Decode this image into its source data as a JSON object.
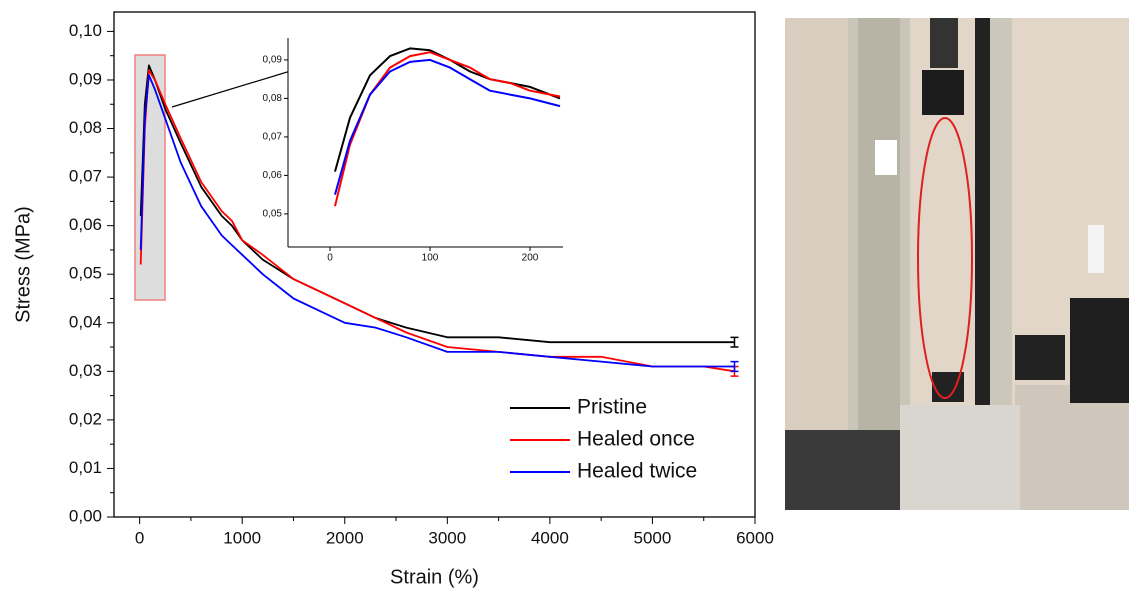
{
  "chart_data": [
    {
      "type": "line",
      "xlabel": "Strain (%)",
      "ylabel": "Stress (MPa)",
      "xlim": [
        -250,
        6000
      ],
      "ylim": [
        0,
        0.104
      ],
      "xticks": [
        0,
        1000,
        2000,
        3000,
        4000,
        5000,
        6000
      ],
      "yticks": [
        {
          "value": 0,
          "label": "0,00"
        },
        {
          "value": 0.01,
          "label": "0,01"
        },
        {
          "value": 0.02,
          "label": "0,02"
        },
        {
          "value": 0.03,
          "label": "0,03"
        },
        {
          "value": 0.04,
          "label": "0,04"
        },
        {
          "value": 0.05,
          "label": "0,05"
        },
        {
          "value": 0.06,
          "label": "0,06"
        },
        {
          "value": 0.07,
          "label": "0,07"
        },
        {
          "value": 0.08,
          "label": "0,08"
        },
        {
          "value": 0.09,
          "label": "0,09"
        },
        {
          "value": 0.1,
          "label": "0,10"
        }
      ],
      "legend": "lower right",
      "x": [
        10,
        50,
        90,
        150,
        250,
        400,
        600,
        800,
        900,
        1000,
        1200,
        1500,
        1800,
        2000,
        2300,
        2600,
        3000,
        3500,
        4000,
        4500,
        5000,
        5500,
        5800
      ],
      "series": [
        {
          "name": "Pristine",
          "color": "#000000",
          "error": 0.001,
          "values": [
            0.062,
            0.085,
            0.093,
            0.09,
            0.084,
            0.077,
            0.068,
            0.062,
            0.06,
            0.057,
            0.053,
            0.049,
            0.046,
            0.044,
            0.041,
            0.039,
            0.037,
            0.037,
            0.036,
            0.036,
            0.036,
            0.036,
            0.036
          ]
        },
        {
          "name": "Healed once",
          "color": "#ff0000",
          "error": 0.001,
          "values": [
            0.052,
            0.08,
            0.092,
            0.09,
            0.085,
            0.078,
            0.069,
            0.063,
            0.061,
            0.057,
            0.054,
            0.049,
            0.046,
            0.044,
            0.041,
            0.038,
            0.035,
            0.034,
            0.033,
            0.033,
            0.031,
            0.031,
            0.03
          ]
        },
        {
          "name": "Healed twice",
          "color": "#0000ff",
          "error": 0.001,
          "values": [
            0.055,
            0.082,
            0.091,
            0.088,
            0.082,
            0.073,
            0.064,
            0.058,
            0.056,
            0.054,
            0.05,
            0.045,
            0.042,
            0.04,
            0.039,
            0.037,
            0.034,
            0.034,
            0.033,
            0.032,
            0.031,
            0.031,
            0.031
          ]
        }
      ]
    },
    {
      "type": "line",
      "xlim": [
        -42,
        233
      ],
      "ylim": [
        0.0414,
        0.0957
      ],
      "xticks": [
        0,
        100,
        200
      ],
      "yticks": [
        {
          "value": 0.05,
          "label": "0,05"
        },
        {
          "value": 0.06,
          "label": "0,06"
        },
        {
          "value": 0.07,
          "label": "0,07"
        },
        {
          "value": 0.08,
          "label": "0,08"
        },
        {
          "value": 0.09,
          "label": "0,09"
        }
      ],
      "x": [
        5,
        20,
        40,
        60,
        80,
        100,
        120,
        140,
        160,
        180,
        200,
        230
      ],
      "series": [
        {
          "color": "#000000",
          "values": [
            0.061,
            0.075,
            0.086,
            0.091,
            0.093,
            0.0925,
            0.09,
            0.087,
            0.085,
            0.084,
            0.083,
            0.08
          ]
        },
        {
          "color": "#ff0000",
          "values": [
            0.052,
            0.068,
            0.081,
            0.088,
            0.091,
            0.092,
            0.09,
            0.088,
            0.085,
            0.084,
            0.082,
            0.0805
          ]
        },
        {
          "color": "#0000ff",
          "values": [
            0.055,
            0.069,
            0.081,
            0.087,
            0.0895,
            0.09,
            0.088,
            0.085,
            0.082,
            0.081,
            0.08,
            0.078
          ]
        }
      ]
    }
  ]
}
